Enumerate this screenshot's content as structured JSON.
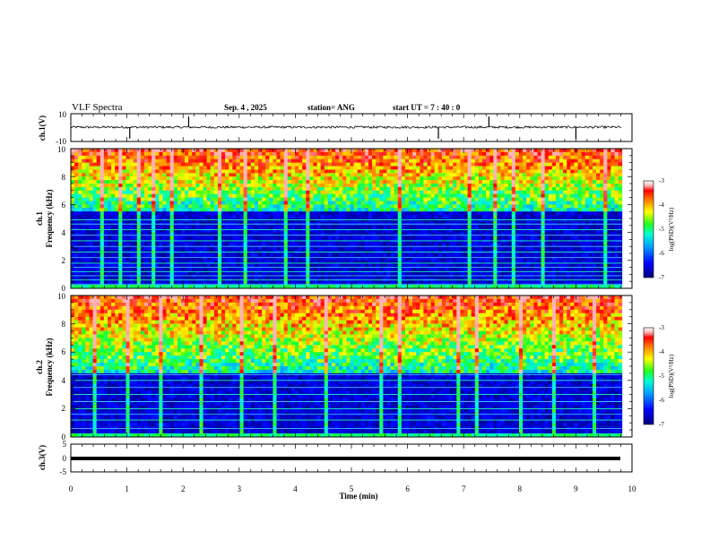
{
  "header": {
    "title": "VLF Spectra",
    "date": "Sep. 4 , 2025",
    "station": "station= ANG",
    "start_ut": "start UT =  7 : 40 : 0"
  },
  "chart_data": {
    "type": "heatmap",
    "title": "VLF Spectra",
    "xlabel": "Time (min)",
    "xlim": [
      0,
      10
    ],
    "xticks": [
      "0",
      "1",
      "2",
      "3",
      "4",
      "5",
      "6",
      "7",
      "8",
      "9",
      "10"
    ],
    "data_end_min": 9.82,
    "panels": [
      {
        "name": "ch1-waveform",
        "type": "line",
        "ylabel": "ch.1(V)",
        "ylim": [
          -10,
          10
        ],
        "yticks": [
          "10",
          "-10"
        ],
        "baseline": 0.3,
        "spikes_min": [
          1.05,
          6.55,
          9.0,
          2.1,
          7.45
        ]
      },
      {
        "name": "ch1-spectrogram",
        "type": "heatmap",
        "ylabel_top": "ch.1",
        "ylabel": "Frequency (kHz)",
        "ylim": [
          0,
          10
        ],
        "yticks": [
          "0",
          "2",
          "4",
          "6",
          "8",
          "10"
        ],
        "colorbar_label": "log(PSD)(V²/Hz)",
        "colorbar_range": [
          -7,
          -3
        ],
        "colorbar_ticks": [
          "-3",
          "-4",
          "-5",
          "-6",
          "-7"
        ],
        "noise_band_khz": [
          5.5,
          10
        ],
        "hum_lines_khz": [
          0.3,
          0.6,
          0.9,
          1.2,
          1.5,
          1.8,
          2.2,
          2.6,
          3.0,
          3.4,
          3.8,
          4.2,
          4.6,
          4.9
        ],
        "bright_events_min": [
          0.55,
          0.85,
          1.15,
          1.45,
          1.75,
          2.6,
          3.1,
          3.8,
          4.2,
          5.8,
          7.1,
          7.55,
          7.85,
          8.4,
          9.5
        ]
      },
      {
        "name": "ch2-spectrogram",
        "type": "heatmap",
        "ylabel_top": "ch.2",
        "ylabel": "Frequency (kHz)",
        "ylim": [
          0,
          10
        ],
        "yticks": [
          "0",
          "2",
          "4",
          "6",
          "8",
          "10"
        ],
        "colorbar_label": "log(PSD)(V²/Hz)",
        "colorbar_range": [
          -7,
          -3
        ],
        "colorbar_ticks": [
          "-3",
          "-4",
          "-5",
          "-6",
          "-7"
        ],
        "noise_band_khz": [
          4.5,
          10
        ],
        "hum_lines_khz": [
          0.6,
          1.2,
          1.6,
          2.0,
          2.5,
          3.0,
          3.5,
          4.0,
          4.4
        ],
        "bright_events_min": [
          0.4,
          1.0,
          1.6,
          2.3,
          3.0,
          3.6,
          4.5,
          5.5,
          5.8,
          6.9,
          7.2,
          8.0,
          8.6,
          9.3
        ]
      },
      {
        "name": "ch3-waveform",
        "type": "line",
        "ylabel": "ch.3(V)",
        "ylim": [
          -5,
          5
        ],
        "yticks": [
          "5",
          "0",
          "-5"
        ],
        "baseline": -0.3
      }
    ]
  }
}
